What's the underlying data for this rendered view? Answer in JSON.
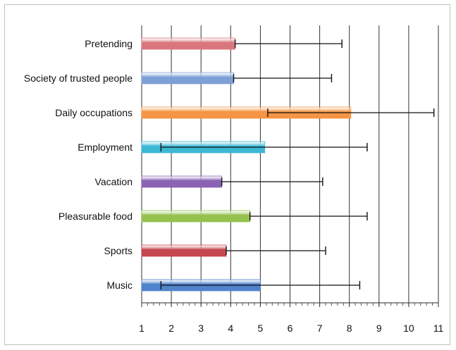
{
  "chart_data": {
    "type": "bar",
    "orientation": "horizontal",
    "title": "",
    "xlabel": "",
    "ylabel": "",
    "xlim": [
      1,
      11
    ],
    "xticks": [
      "1",
      "2",
      "3",
      "4",
      "5",
      "6",
      "7",
      "8",
      "9",
      "10",
      "11"
    ],
    "grid": "vertical",
    "legend": "none",
    "categories": [
      "Pretending",
      "Society of trusted people",
      "Daily occupations",
      "Employment",
      "Vacation",
      "Pleasurable food",
      "Sports",
      "Music"
    ],
    "values": [
      4.15,
      4.1,
      8.05,
      5.15,
      3.7,
      4.65,
      3.85,
      5.0
    ],
    "error_low": [
      4.15,
      4.1,
      5.25,
      1.65,
      3.7,
      4.65,
      3.85,
      1.65
    ],
    "error_high": [
      7.75,
      7.4,
      10.85,
      8.6,
      7.1,
      8.6,
      7.2,
      8.35
    ],
    "colors": [
      "#d9777c",
      "#7ea0d6",
      "#f59442",
      "#3cb8d6",
      "#8a63b3",
      "#95c24f",
      "#c7474f",
      "#4f83cc"
    ]
  }
}
